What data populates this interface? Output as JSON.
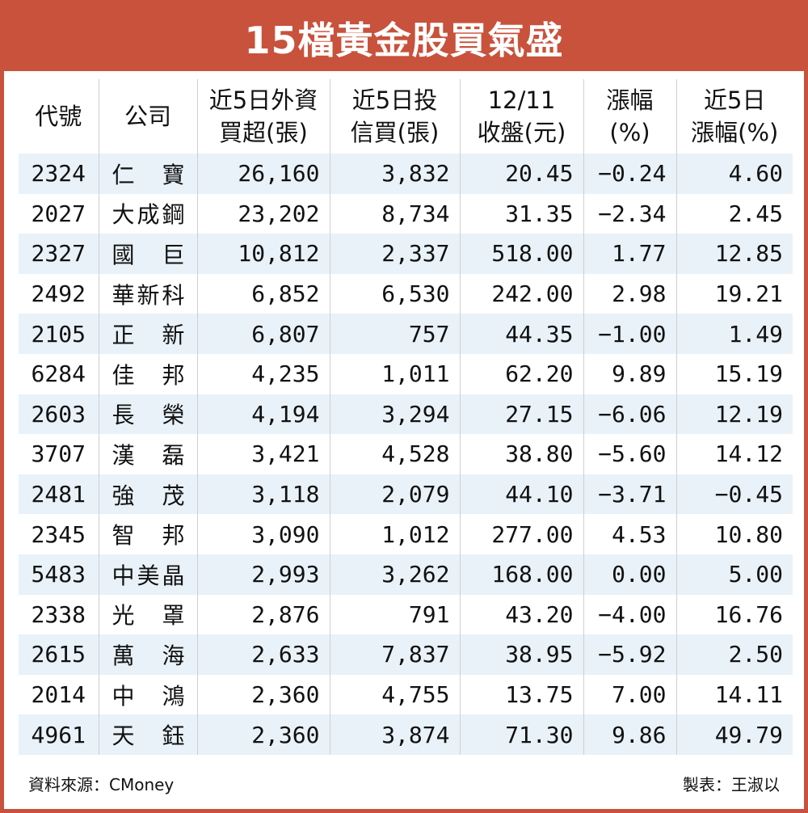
{
  "title": "15檔黃金股買氣盛",
  "headers": [
    "代號",
    "公司",
    "近5日外資\n買超(張)",
    "近5日投\n信買(張)",
    "12/11\n收盤(元)",
    "漲幅\n(%)",
    "近5日\n漲幅(%)"
  ],
  "rows": [
    [
      "2324",
      "仁寶",
      "26,160",
      "3,832",
      "20.45",
      "−0.24",
      "4.60"
    ],
    [
      "2027",
      "大成鋼",
      "23,202",
      "8,734",
      "31.35",
      "−2.34",
      "2.45"
    ],
    [
      "2327",
      "國巨",
      "10,812",
      "2,337",
      "518.00",
      "1.77",
      "12.85"
    ],
    [
      "2492",
      "華新科",
      "6,852",
      "6,530",
      "242.00",
      "2.98",
      "19.21"
    ],
    [
      "2105",
      "正新",
      "6,807",
      "757",
      "44.35",
      "−1.00",
      "1.49"
    ],
    [
      "6284",
      "佳邦",
      "4,235",
      "1,011",
      "62.20",
      "9.89",
      "15.19"
    ],
    [
      "2603",
      "長榮",
      "4,194",
      "3,294",
      "27.15",
      "−6.06",
      "12.19"
    ],
    [
      "3707",
      "漢磊",
      "3,421",
      "4,528",
      "38.80",
      "−5.60",
      "14.12"
    ],
    [
      "2481",
      "強茂",
      "3,118",
      "2,079",
      "44.10",
      "−3.71",
      "−0.45"
    ],
    [
      "2345",
      "智邦",
      "3,090",
      "1,012",
      "277.00",
      "4.53",
      "10.80"
    ],
    [
      "5483",
      "中美晶",
      "2,993",
      "3,262",
      "168.00",
      "0.00",
      "5.00"
    ],
    [
      "2338",
      "光罩",
      "2,876",
      "791",
      "43.20",
      "−4.00",
      "16.76"
    ],
    [
      "2615",
      "萬海",
      "2,633",
      "7,837",
      "38.95",
      "−5.92",
      "2.50"
    ],
    [
      "2014",
      "中鴻",
      "2,360",
      "4,755",
      "13.75",
      "7.00",
      "14.11"
    ],
    [
      "4961",
      "天鈺",
      "2,360",
      "3,874",
      "71.30",
      "9.86",
      "49.79"
    ]
  ],
  "source": "資料來源：CMoney",
  "maker": "製表：王淑以",
  "colors": {
    "accent": "#c8523c",
    "stripe": "#e9f2f8"
  }
}
